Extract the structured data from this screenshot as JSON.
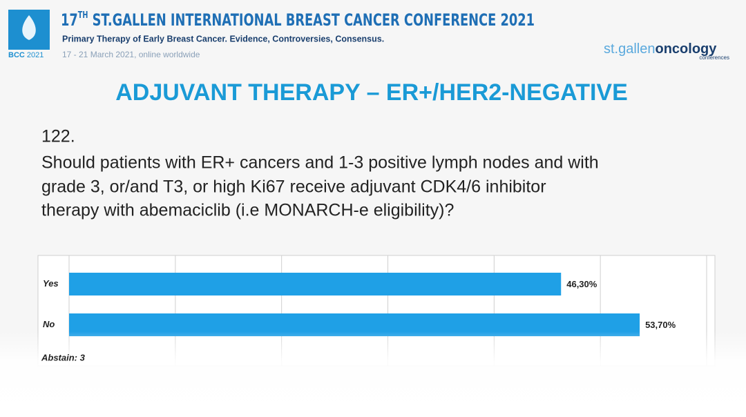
{
  "header": {
    "title_number": "17",
    "title_sup": "TH",
    "title_rest": " ST.GALLEN INTERNATIONAL BREAST CANCER CONFERENCE 2021",
    "subtitle": "Primary Therapy of Early Breast Cancer. Evidence, Controversies, Consensus.",
    "dates": "17 - 21 March 2021, online worldwide",
    "logo_left": "BCC",
    "logo_year": "2021",
    "logo_right_a": "st.gallen",
    "logo_right_b": "oncology",
    "logo_right_c": "conferences"
  },
  "slide_title": "ADJUVANT THERAPY – ER+/HER2-NEGATIVE",
  "question": {
    "number": "122.",
    "lines": [
      "Should patients with ER+ cancers and 1-3 positive lymph nodes and with",
      "grade 3, or/and T3, or high Ki67 receive adjuvant CDK4/6 inhibitor",
      "therapy with abemaciclib (i.e MONARCH-e eligibility)?"
    ]
  },
  "chart_data": {
    "type": "hbar",
    "categories": [
      "Yes",
      "No"
    ],
    "values": [
      46.3,
      53.7
    ],
    "value_labels": [
      "46,30%",
      "53,70%"
    ],
    "color": "#1fa0e6",
    "xlim": [
      0,
      60
    ],
    "xticks": [
      0,
      10,
      20,
      30,
      40,
      50,
      60
    ],
    "grid": true,
    "note": "Abstain: 3"
  }
}
